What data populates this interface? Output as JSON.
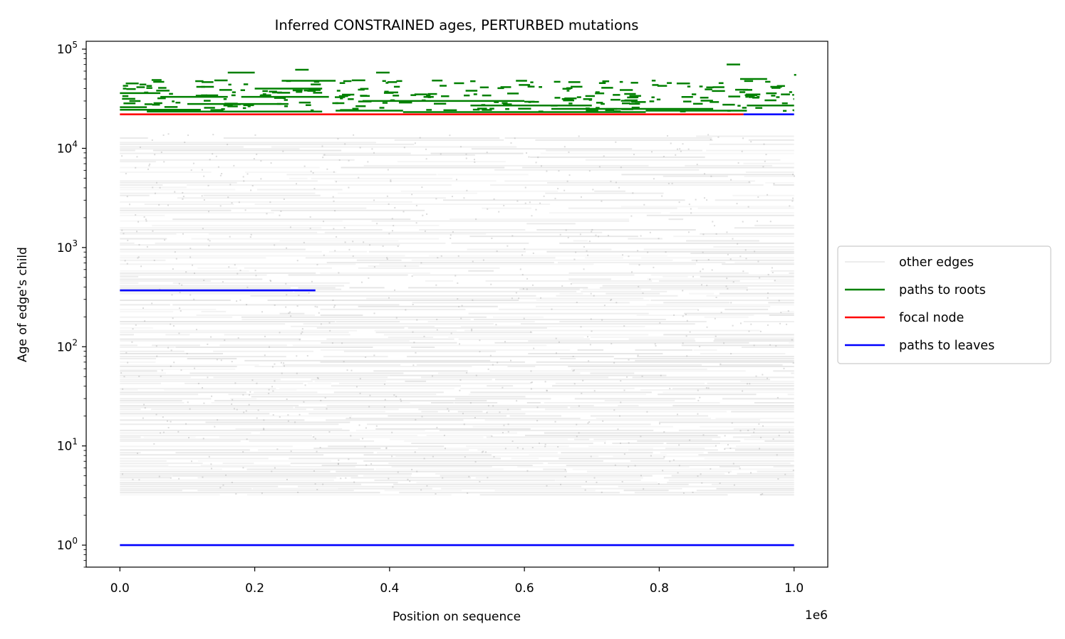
{
  "chart_data": {
    "type": "line",
    "title": "Inferred CONSTRAINED ages, PERTURBED mutations",
    "xlabel": "Position on sequence",
    "ylabel": "Age of edge's child",
    "x_offset_label": "1e6",
    "x_scale_multiplier": 1000000,
    "xlim": [
      -50000,
      1050000
    ],
    "ylim": [
      0.6,
      120000
    ],
    "yscale": "log",
    "x_ticks": [
      {
        "value": 0,
        "label": "0.0"
      },
      {
        "value": 200000,
        "label": "0.2"
      },
      {
        "value": 400000,
        "label": "0.4"
      },
      {
        "value": 600000,
        "label": "0.6"
      },
      {
        "value": 800000,
        "label": "0.8"
      },
      {
        "value": 1000000,
        "label": "1.0"
      }
    ],
    "y_ticks": [
      {
        "value": 1,
        "base": "10",
        "exp": "0"
      },
      {
        "value": 10,
        "base": "10",
        "exp": "1"
      },
      {
        "value": 100,
        "base": "10",
        "exp": "2"
      },
      {
        "value": 1000,
        "base": "10",
        "exp": "3"
      },
      {
        "value": 10000,
        "base": "10",
        "exp": "4"
      },
      {
        "value": 100000,
        "base": "10",
        "exp": "5"
      }
    ],
    "grid": false,
    "legend_position": "outside-right",
    "series": [
      {
        "name": "other edges",
        "color": "#d9d9d9",
        "description_segments_y_range": [
          3.2,
          14000
        ]
      },
      {
        "name": "paths to roots",
        "color": "#008000",
        "segments": [
          {
            "x0": 0,
            "x1": 40000,
            "y": 26000
          },
          {
            "x0": 0,
            "x1": 120000,
            "y": 24500
          },
          {
            "x0": 40000,
            "x1": 300000,
            "y": 23500
          },
          {
            "x0": 100000,
            "x1": 250000,
            "y": 28000
          },
          {
            "x0": 180000,
            "x1": 310000,
            "y": 33000
          },
          {
            "x0": 320000,
            "x1": 420000,
            "y": 24000
          },
          {
            "x0": 360000,
            "x1": 600000,
            "y": 30000
          },
          {
            "x0": 420000,
            "x1": 780000,
            "y": 23200
          },
          {
            "x0": 520000,
            "x1": 700000,
            "y": 27000
          },
          {
            "x0": 640000,
            "x1": 880000,
            "y": 25000
          },
          {
            "x0": 780000,
            "x1": 930000,
            "y": 24000
          },
          {
            "x0": 930000,
            "x1": 1000000,
            "y": 27000
          },
          {
            "x0": 0,
            "x1": 60000,
            "y": 36000
          },
          {
            "x0": 60000,
            "x1": 160000,
            "y": 33000
          },
          {
            "x0": 200000,
            "x1": 300000,
            "y": 40000
          },
          {
            "x0": 240000,
            "x1": 320000,
            "y": 48000
          },
          {
            "x0": 160000,
            "x1": 200000,
            "y": 58000
          },
          {
            "x0": 260000,
            "x1": 280000,
            "y": 62000
          },
          {
            "x0": 380000,
            "x1": 400000,
            "y": 58000
          },
          {
            "x0": 900000,
            "x1": 920000,
            "y": 70000
          },
          {
            "x0": 920000,
            "x1": 960000,
            "y": 50000
          },
          {
            "x0": 1000000,
            "x1": 1000000,
            "y": 55000
          }
        ]
      },
      {
        "name": "focal node",
        "color": "#ff0000",
        "segments": [
          {
            "x0": 0,
            "x1": 925000,
            "y": 22000
          }
        ]
      },
      {
        "name": "paths to leaves",
        "color": "#0000ff",
        "segments": [
          {
            "x0": 925000,
            "x1": 1000000,
            "y": 22000
          },
          {
            "x0": 0,
            "x1": 290000,
            "y": 370
          },
          {
            "x0": 0,
            "x1": 1000000,
            "y": 1
          }
        ]
      }
    ]
  }
}
